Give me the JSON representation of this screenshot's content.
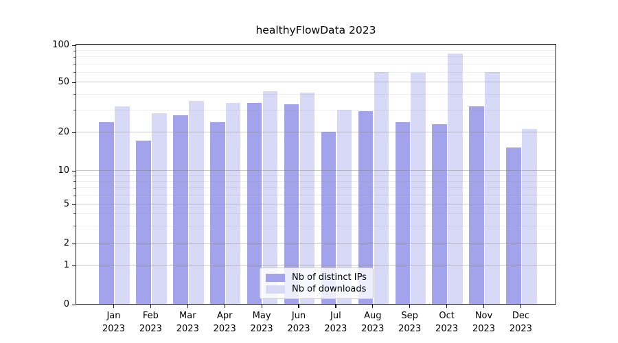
{
  "chart_data": {
    "type": "bar",
    "title": "healthyFlowData 2023",
    "categories": [
      "Jan 2023",
      "Feb 2023",
      "Mar 2023",
      "Apr 2023",
      "May 2023",
      "Jun 2023",
      "Jul 2023",
      "Aug 2023",
      "Sep 2023",
      "Oct 2023",
      "Nov 2023",
      "Dec 2023"
    ],
    "series": [
      {
        "name": "Nb of distinct IPs",
        "color": "#a3a3ec",
        "values": [
          24,
          17,
          27,
          24,
          34,
          33,
          20,
          29,
          24,
          23,
          32,
          15
        ]
      },
      {
        "name": "Nb of downloads",
        "color": "#d8d8f7",
        "values": [
          32,
          28,
          35,
          34,
          42,
          41,
          30,
          60,
          59,
          85,
          60,
          21
        ]
      }
    ],
    "xlabel": "",
    "ylabel": "",
    "yscale": "symlog",
    "ylim": [
      0,
      100
    ],
    "yticks": [
      0,
      1,
      2,
      5,
      10,
      20,
      50,
      100
    ],
    "ytick_labels": [
      "0",
      "1",
      "2",
      "5",
      "10",
      "20",
      "50",
      "100"
    ],
    "yminor_ticks": [
      3,
      4,
      6,
      7,
      8,
      9,
      30,
      40,
      60,
      70,
      80,
      90
    ],
    "grid": true,
    "legend_position": "lower center"
  }
}
